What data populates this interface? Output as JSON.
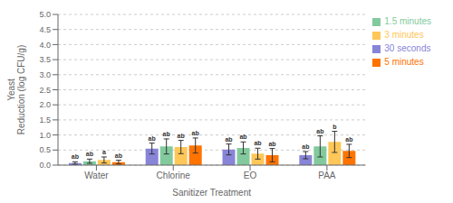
{
  "chart_data": {
    "type": "bar",
    "categories": [
      "Water",
      "Chlorine",
      "EO",
      "PAA"
    ],
    "series": [
      {
        "name": "30 seconds",
        "color": "#8884d8",
        "values": [
          0.07,
          0.55,
          0.52,
          0.33
        ],
        "errors": [
          0.04,
          0.18,
          0.18,
          0.12
        ],
        "annotations": [
          "ab",
          "ab",
          "ab",
          "ab"
        ]
      },
      {
        "name": "1.5 minutes",
        "color": "#82ca9d",
        "values": [
          0.13,
          0.62,
          0.57,
          0.62
        ],
        "errors": [
          0.07,
          0.25,
          0.2,
          0.35
        ],
        "annotations": [
          "ab",
          "ab",
          "ab",
          "ab"
        ]
      },
      {
        "name": "3 minutes",
        "color": "#ffc658",
        "values": [
          0.17,
          0.6,
          0.38,
          0.77
        ],
        "errors": [
          0.1,
          0.22,
          0.18,
          0.35
        ],
        "annotations": [
          "a",
          "ab",
          "ab",
          "b"
        ]
      },
      {
        "name": "5 minutes",
        "color": "#ff7300",
        "values": [
          0.1,
          0.65,
          0.33,
          0.47
        ],
        "errors": [
          0.06,
          0.25,
          0.22,
          0.22
        ],
        "annotations": [
          "ab",
          "ab",
          "ab",
          "ab"
        ]
      }
    ],
    "xlabel": "Sanitizer Treatment",
    "ylabel": "Yeast\nReduction (log CFU/g)",
    "ylim": [
      0.0,
      5.0
    ],
    "yticks": [
      {
        "value": 0,
        "label": "0.0"
      },
      0.5,
      {
        "value": 1,
        "label": "1.0"
      },
      1.5,
      {
        "value": 2,
        "label": "2.0"
      },
      2.5,
      {
        "value": 3,
        "label": "3.0"
      },
      3.5,
      {
        "value": 4,
        "label": "4.0"
      },
      4.5,
      {
        "value": 5,
        "label": "5.0"
      }
    ],
    "grid": true,
    "legend": "right"
  }
}
